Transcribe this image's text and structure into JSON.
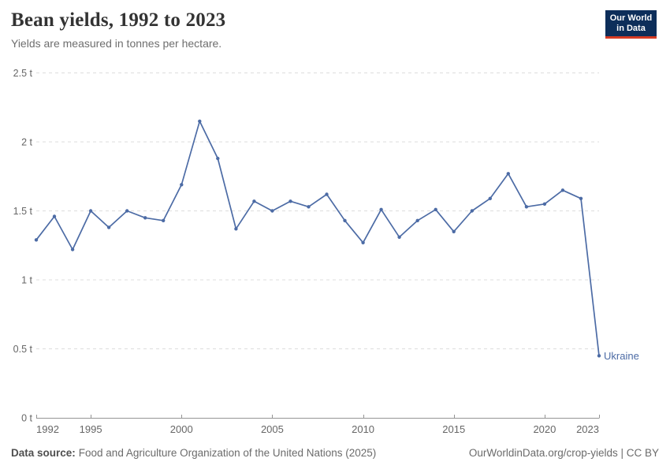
{
  "header": {
    "title": "Bean yields, 1992 to 2023",
    "subtitle": "Yields are measured in tonnes per hectare.",
    "logo": {
      "line1": "Our World",
      "line2": "in Data",
      "bg": "#0d2e5a",
      "bar": "#d63b23"
    }
  },
  "chart_data": {
    "type": "line",
    "title": "Bean yields, 1992 to 2023",
    "subtitle": "Yields are measured in tonnes per hectare.",
    "ylabel": "tonnes per hectare",
    "unit": "t",
    "grid": "horizontal-dashed",
    "legend_position": "end-of-line-label",
    "ylim": [
      0,
      2.5
    ],
    "x": [
      1992,
      1993,
      1994,
      1995,
      1996,
      1997,
      1998,
      1999,
      2000,
      2001,
      2002,
      2003,
      2004,
      2005,
      2006,
      2007,
      2008,
      2009,
      2010,
      2011,
      2012,
      2013,
      2014,
      2015,
      2016,
      2017,
      2018,
      2019,
      2020,
      2021,
      2022,
      2023
    ],
    "series": [
      {
        "name": "Ukraine",
        "color": "#4c6ba5",
        "values": [
          1.29,
          1.46,
          1.22,
          1.5,
          1.38,
          1.5,
          1.45,
          1.43,
          1.69,
          2.15,
          1.88,
          1.37,
          1.57,
          1.5,
          1.57,
          1.53,
          1.62,
          1.43,
          1.27,
          1.51,
          1.31,
          1.43,
          1.51,
          1.35,
          1.5,
          1.59,
          1.77,
          1.53,
          1.55,
          1.65,
          1.59,
          0.45
        ]
      }
    ],
    "yticks": [
      {
        "v": 0,
        "label": "0 t"
      },
      {
        "v": 0.5,
        "label": "0.5 t"
      },
      {
        "v": 1,
        "label": "1 t"
      },
      {
        "v": 1.5,
        "label": "1.5 t"
      },
      {
        "v": 2,
        "label": "2 t"
      },
      {
        "v": 2.5,
        "label": "2.5 t"
      }
    ],
    "xticks": [
      1992,
      1995,
      2000,
      2005,
      2010,
      2015,
      2020,
      2023
    ]
  },
  "colors": {
    "line": "#4c6ba5",
    "grid": "#dddddd",
    "axis": "#949494",
    "tick_label": "#666666"
  },
  "footer": {
    "source_label": "Data source:",
    "source_text": "Food and Agriculture Organization of the United Nations (2025)",
    "credit": "OurWorldinData.org/crop-yields | CC BY"
  }
}
